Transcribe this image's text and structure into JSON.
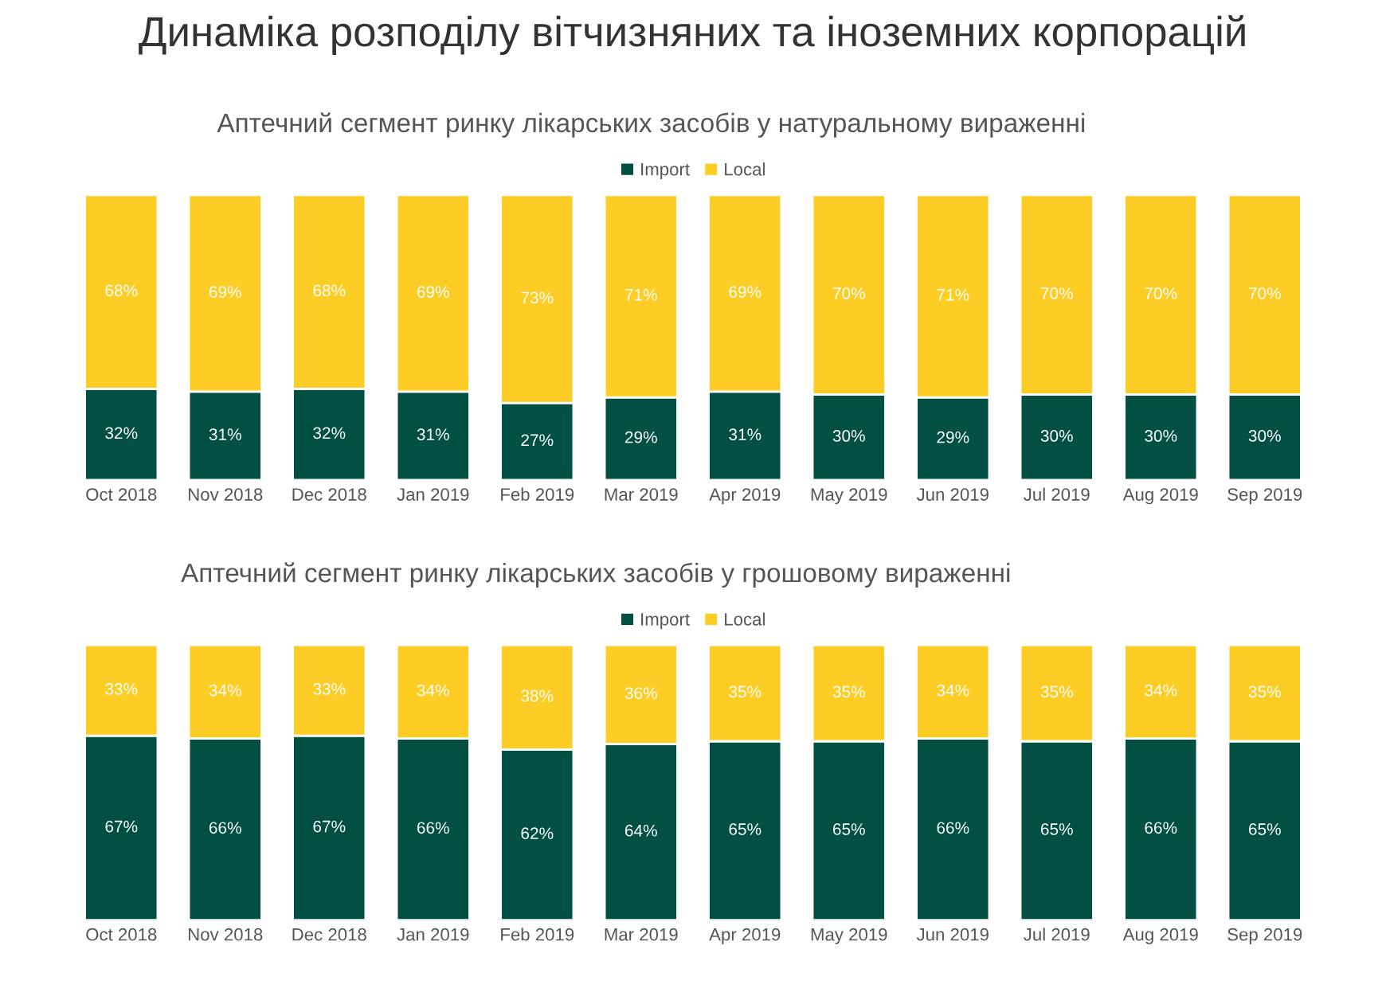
{
  "chart_data": [
    {
      "type": "bar",
      "title": "Динаміка розподілу вітчизняних та іноземних корпорацій",
      "subtitle": "Аптечний сегмент ринку лікарських засобів у натуральному вираженні",
      "categories": [
        "Oct 2018",
        "Nov 2018",
        "Dec 2018",
        "Jan 2019",
        "Feb 2019",
        "Mar 2019",
        "Apr 2019",
        "May 2019",
        "Jun 2019",
        "Jul 2019",
        "Aug 2019",
        "Sep 2019"
      ],
      "series": [
        {
          "name": "Import",
          "color": "#024f43",
          "values": [
            32,
            31,
            32,
            31,
            27,
            29,
            31,
            30,
            29,
            30,
            30,
            30
          ],
          "value_labels": [
            "32%",
            "31%",
            "32%",
            "31%",
            "27%",
            "29%",
            "31%",
            "30%",
            "29%",
            "30%",
            "30%",
            "30%"
          ]
        },
        {
          "name": "Local",
          "color": "#fdcd25",
          "values": [
            68,
            69,
            68,
            69,
            73,
            71,
            69,
            70,
            71,
            70,
            70,
            70
          ],
          "value_labels": [
            "68%",
            "69%",
            "68%",
            "69%",
            "73%",
            "71%",
            "69%",
            "70%",
            "71%",
            "70%",
            "70%",
            "70%"
          ]
        }
      ],
      "stacked": true,
      "tick_labels": "x",
      "legend": "top",
      "grid": false
    },
    {
      "type": "bar",
      "title": "Аптечний сегмент ринку лікарських засобів у грошовому вираженні",
      "categories": [
        "Oct 2018",
        "Nov 2018",
        "Dec 2018",
        "Jan 2019",
        "Feb 2019",
        "Mar 2019",
        "Apr 2019",
        "May 2019",
        "Jun 2019",
        "Jul 2019",
        "Aug 2019",
        "Sep 2019"
      ],
      "series": [
        {
          "name": "Import",
          "color": "#024f43",
          "values": [
            67,
            66,
            67,
            66,
            62,
            64,
            65,
            65,
            66,
            65,
            66,
            65
          ],
          "value_labels": [
            "67%",
            "66%",
            "67%",
            "66%",
            "62%",
            "64%",
            "65%",
            "65%",
            "66%",
            "65%",
            "66%",
            "65%"
          ]
        },
        {
          "name": "Local",
          "color": "#fdcd25",
          "values": [
            33,
            34,
            33,
            34,
            38,
            36,
            35,
            35,
            34,
            35,
            34,
            35
          ],
          "value_labels": [
            "33%",
            "34%",
            "33%",
            "34%",
            "38%",
            "36%",
            "35%",
            "35%",
            "34%",
            "35%",
            "34%",
            "35%"
          ]
        }
      ],
      "stacked": true,
      "tick_labels": "x",
      "legend": "top",
      "grid": false
    }
  ]
}
